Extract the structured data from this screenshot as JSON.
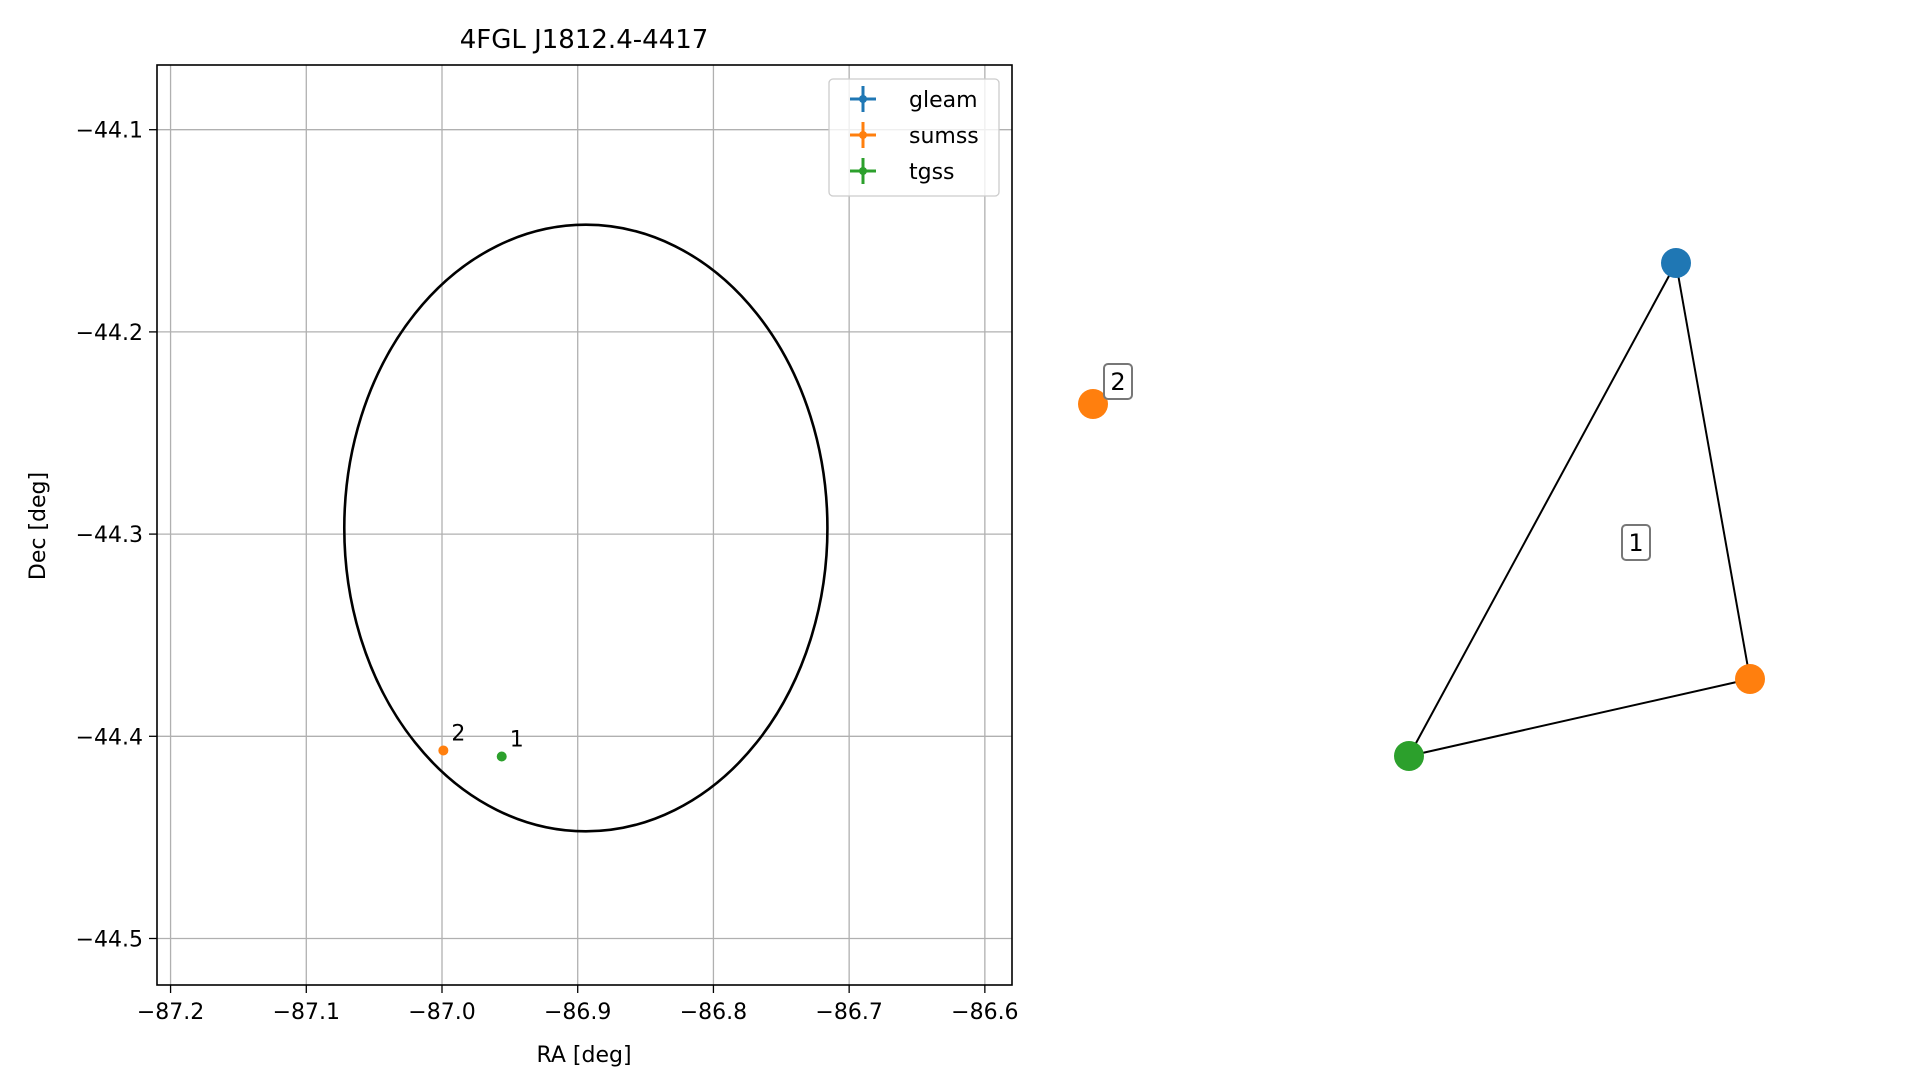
{
  "chart_data": [
    {
      "type": "scatter",
      "title": "4FGL J1812.4-4417",
      "xlabel": "RA [deg]",
      "ylabel": "Dec [deg]",
      "xlim": [
        -87.21,
        -86.58
      ],
      "ylim": [
        -44.523,
        -44.068
      ],
      "x_ticks": [
        -87.2,
        -87.1,
        -87.0,
        -86.9,
        -86.8,
        -86.7,
        -86.6
      ],
      "x_tick_labels": [
        "−87.2",
        "−87.1",
        "−87.0",
        "−86.9",
        "−86.8",
        "−86.7",
        "−86.6"
      ],
      "y_ticks": [
        -44.1,
        -44.2,
        -44.3,
        -44.4,
        -44.5
      ],
      "y_tick_labels": [
        "−44.1",
        "−44.2",
        "−44.3",
        "−44.4",
        "−44.5"
      ],
      "grid": true,
      "legend_placement": "top-right",
      "ellipse": {
        "center": [
          -86.894,
          -44.297
        ],
        "semi_axis_ra": 0.178,
        "semi_axis_dec": 0.15
      },
      "series": [
        {
          "name": "gleam",
          "color": "#1f77b4",
          "points": []
        },
        {
          "name": "sumss",
          "color": "#ff7f0e",
          "points": [
            {
              "x": -86.999,
              "y": -44.407,
              "label": "2"
            }
          ]
        },
        {
          "name": "tgss",
          "color": "#2ca02c",
          "points": [
            {
              "x": -86.956,
              "y": -44.41,
              "label": "1"
            }
          ]
        }
      ]
    },
    {
      "type": "network",
      "nodes": [
        {
          "id": "gleam",
          "color": "#1f77b4"
        },
        {
          "id": "sumss-a",
          "color": "#ff7f0e"
        },
        {
          "id": "tgss",
          "color": "#2ca02c"
        },
        {
          "id": "sumss-b",
          "color": "#ff7f0e"
        }
      ],
      "edges": [
        [
          "gleam",
          "sumss-a"
        ],
        [
          "sumss-a",
          "tgss"
        ],
        [
          "tgss",
          "gleam"
        ]
      ],
      "group_labels": [
        "1",
        "2"
      ]
    }
  ]
}
